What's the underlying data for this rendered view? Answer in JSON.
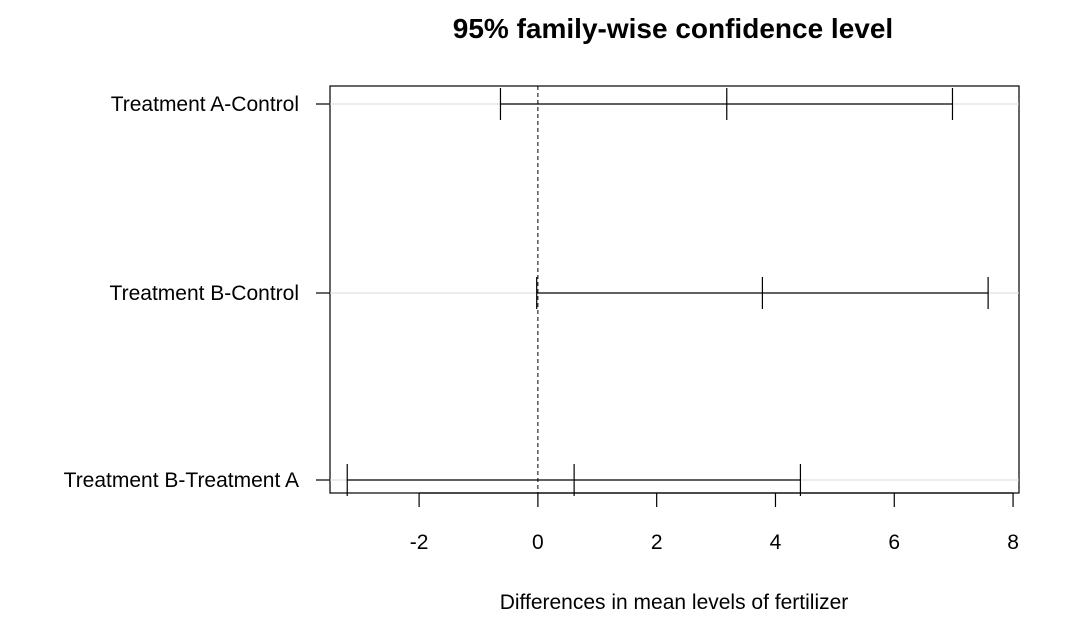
{
  "chart_data": {
    "type": "errorbar",
    "title": "95% family-wise confidence level",
    "xlabel": "Differences in mean levels of fertilizer",
    "ylabel": "",
    "xlim": [
      -3.5,
      8.1
    ],
    "xticks": [
      -2,
      0,
      2,
      4,
      6,
      8
    ],
    "reference_line": 0,
    "grid": "horizontal",
    "comparisons": [
      {
        "label": "Treatment A-Control",
        "lower": -0.63,
        "estimate": 3.18,
        "upper": 6.98
      },
      {
        "label": "Treatment B-Control",
        "lower": -0.02,
        "estimate": 3.78,
        "upper": 7.58
      },
      {
        "label": "Treatment B-Treatment A",
        "lower": -3.21,
        "estimate": 0.61,
        "upper": 4.42
      }
    ]
  }
}
